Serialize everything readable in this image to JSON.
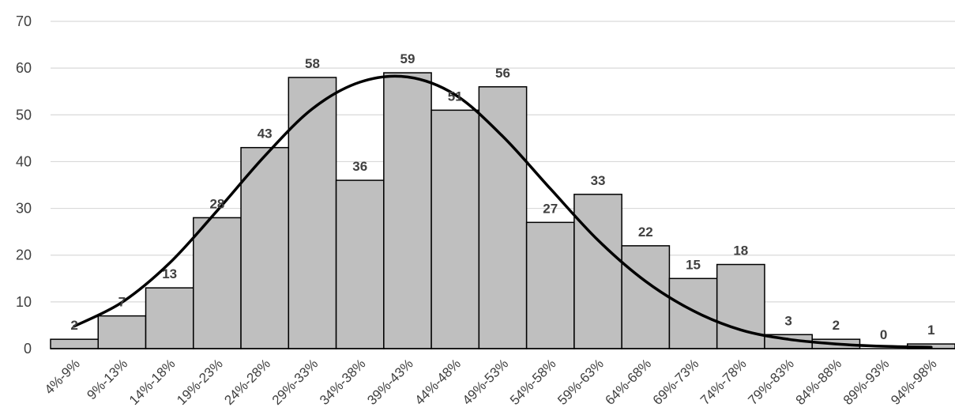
{
  "chart_data": {
    "type": "bar",
    "title": "",
    "xlabel": "",
    "ylabel": "",
    "ylim": [
      0,
      70
    ],
    "yticks": [
      0,
      10,
      20,
      30,
      40,
      50,
      60,
      70
    ],
    "grid": true,
    "legend": "none",
    "categories": [
      "4%-9%",
      "9%-13%",
      "14%-18%",
      "19%-23%",
      "24%-28%",
      "29%-33%",
      "34%-38%",
      "39%-43%",
      "44%-48%",
      "49%-53%",
      "54%-58%",
      "59%-63%",
      "64%-68%",
      "69%-73%",
      "74%-78%",
      "79%-83%",
      "84%-88%",
      "89%-93%",
      "94%-98%"
    ],
    "series": [
      {
        "values": [
          2,
          7,
          13,
          28,
          43,
          58,
          36,
          59,
          51,
          56,
          27,
          33,
          22,
          15,
          18,
          3,
          2,
          0,
          1
        ]
      }
    ],
    "fit_curve": {
      "type": "line",
      "x": [
        "4%-9%",
        "9%-13%",
        "14%-18%",
        "19%-23%",
        "24%-28%",
        "29%-33%",
        "34%-38%",
        "39%-43%",
        "44%-48%",
        "49%-53%",
        "54%-58%",
        "59%-63%",
        "64%-68%",
        "69%-73%",
        "74%-78%",
        "79%-83%",
        "84%-88%",
        "89%-93%",
        "94%-98%"
      ],
      "values": [
        4.8,
        9.9,
        18.3,
        29.5,
        41.2,
        51.3,
        57.0,
        58.1,
        54.3,
        45.4,
        34.2,
        23.2,
        14.4,
        8.1,
        4.0,
        2.0,
        1.0,
        0.5,
        0.3
      ]
    },
    "colors": {
      "bar_fill": "#bfbfbf",
      "bar_stroke": "#000000",
      "curve": "#000000",
      "grid": "#d9d9d9",
      "text": "#404040"
    }
  }
}
